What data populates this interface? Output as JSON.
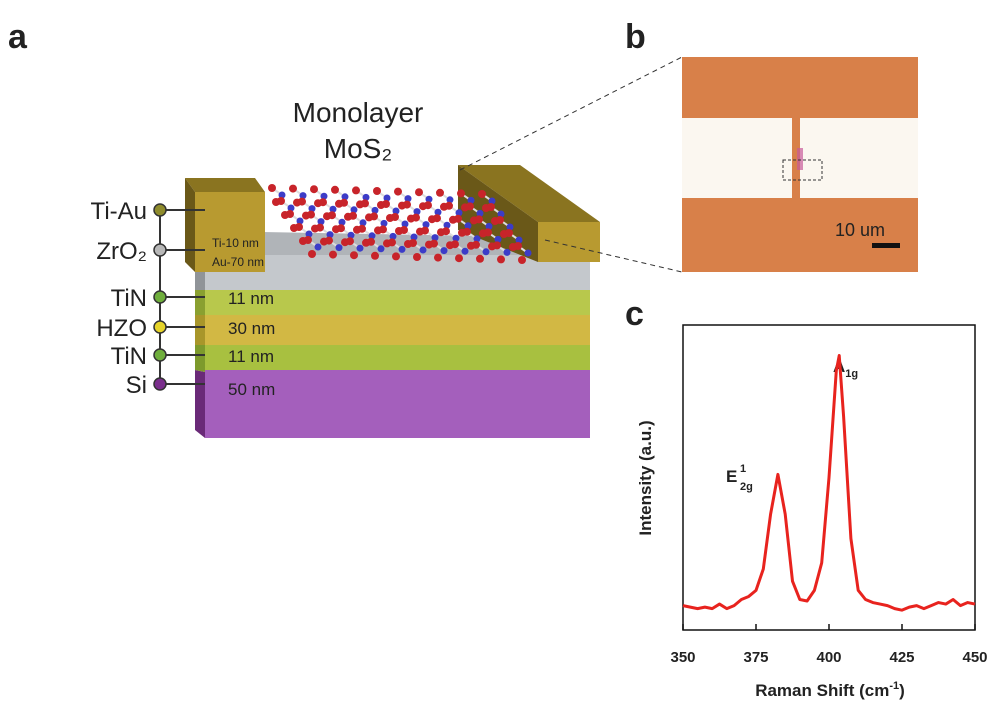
{
  "panel_a": {
    "label": "a",
    "title": [
      "Monolayer",
      "MoS₂"
    ],
    "layers": [
      {
        "name": "Ti-Au",
        "color": "#8f8c2c"
      },
      {
        "name": "ZrO₂",
        "color": "#b8b8b8"
      },
      {
        "name": "TiN",
        "color": "#6fae3c"
      },
      {
        "name": "HZO",
        "color": "#e6d42a"
      },
      {
        "name": "TiN",
        "color": "#6fae3c"
      },
      {
        "name": "Si",
        "color": "#7a2f8c"
      }
    ],
    "thickness": [
      "Ti-10 nm",
      "Au-70 nm",
      "11 nm",
      "30 nm",
      "11 nm",
      "50 nm"
    ]
  },
  "panel_b": {
    "label": "b",
    "scale_bar": "10 um"
  },
  "chart_data": {
    "type": "line",
    "label": "c",
    "x_label": {
      "text": "Raman Shift (cm",
      "sup": "-1",
      "end": ")"
    },
    "y_label": "Intensity (a.u.)",
    "x": [
      350,
      352.5,
      355,
      357.5,
      360,
      362.5,
      365,
      367.5,
      370,
      372.5,
      375,
      377.5,
      380,
      382.5,
      385,
      387.5,
      390,
      392.5,
      395,
      397.5,
      400,
      402.5,
      403.5,
      405,
      407.5,
      410,
      412.5,
      415,
      417.5,
      420,
      422.5,
      425,
      427.5,
      430,
      432.5,
      435,
      437.5,
      440,
      442.5,
      445,
      447.5,
      450
    ],
    "values": [
      8,
      7.5,
      7,
      7.5,
      7,
      8.5,
      7,
      8,
      10,
      11,
      13,
      20,
      38,
      51,
      38,
      16,
      10,
      9.5,
      13,
      22,
      50,
      85,
      90,
      70,
      30,
      13,
      10,
      9,
      8.5,
      8,
      7,
      6.5,
      7.5,
      8,
      7,
      8,
      9,
      8.5,
      10,
      8,
      9,
      8.5
    ],
    "color": "#e8231e",
    "xlim": [
      350,
      450
    ],
    "xticks": [
      350,
      375,
      400,
      425,
      450
    ],
    "ylim": [
      0,
      100
    ],
    "annotations": [
      {
        "text": "A",
        "sub": "1g"
      },
      {
        "text": "E",
        "sup": "1",
        "sub": "2g"
      }
    ]
  }
}
